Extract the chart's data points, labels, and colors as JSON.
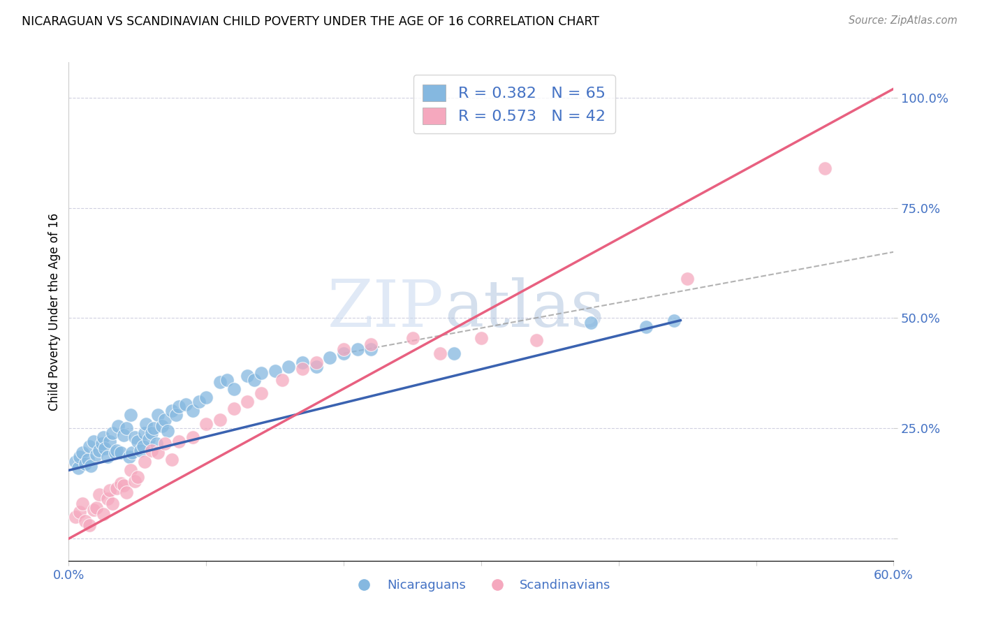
{
  "title": "NICARAGUAN VS SCANDINAVIAN CHILD POVERTY UNDER THE AGE OF 16 CORRELATION CHART",
  "source": "Source: ZipAtlas.com",
  "ylabel": "Child Poverty Under the Age of 16",
  "xmin": 0.0,
  "xmax": 0.6,
  "ymin": -0.05,
  "ymax": 1.08,
  "blue_color": "#85b8e0",
  "pink_color": "#f5a8be",
  "blue_line_color": "#3a62b0",
  "pink_line_color": "#e86080",
  "axis_color": "#4472c4",
  "R_blue": 0.382,
  "N_blue": 65,
  "R_pink": 0.573,
  "N_pink": 42,
  "watermark_zip": "ZIP",
  "watermark_atlas": "atlas",
  "background_color": "#ffffff",
  "grid_color": "#d0d0e0",
  "blue_line_x0": 0.0,
  "blue_line_y0": 0.155,
  "blue_line_x1": 0.445,
  "blue_line_y1": 0.495,
  "pink_line_x0": 0.0,
  "pink_line_y0": 0.0,
  "pink_line_x1": 0.6,
  "pink_line_y1": 1.02,
  "dash_line_x0": 0.2,
  "dash_line_y0": 0.42,
  "dash_line_x1": 0.6,
  "dash_line_y1": 0.65,
  "nicaraguan_x": [
    0.005,
    0.007,
    0.008,
    0.01,
    0.012,
    0.014,
    0.015,
    0.016,
    0.018,
    0.02,
    0.022,
    0.024,
    0.025,
    0.026,
    0.028,
    0.03,
    0.032,
    0.034,
    0.035,
    0.036,
    0.038,
    0.04,
    0.042,
    0.044,
    0.045,
    0.046,
    0.048,
    0.05,
    0.052,
    0.054,
    0.055,
    0.056,
    0.058,
    0.06,
    0.062,
    0.064,
    0.065,
    0.068,
    0.07,
    0.072,
    0.075,
    0.078,
    0.08,
    0.085,
    0.09,
    0.095,
    0.1,
    0.11,
    0.115,
    0.12,
    0.13,
    0.135,
    0.14,
    0.15,
    0.16,
    0.17,
    0.18,
    0.19,
    0.2,
    0.21,
    0.22,
    0.28,
    0.38,
    0.42,
    0.44
  ],
  "nicaraguan_y": [
    0.175,
    0.16,
    0.185,
    0.195,
    0.17,
    0.18,
    0.21,
    0.165,
    0.22,
    0.19,
    0.2,
    0.215,
    0.23,
    0.205,
    0.185,
    0.22,
    0.24,
    0.195,
    0.2,
    0.255,
    0.195,
    0.235,
    0.25,
    0.185,
    0.28,
    0.195,
    0.23,
    0.22,
    0.2,
    0.21,
    0.24,
    0.26,
    0.225,
    0.24,
    0.25,
    0.215,
    0.28,
    0.255,
    0.27,
    0.245,
    0.29,
    0.28,
    0.3,
    0.305,
    0.29,
    0.31,
    0.32,
    0.355,
    0.36,
    0.34,
    0.37,
    0.36,
    0.375,
    0.38,
    0.39,
    0.4,
    0.39,
    0.41,
    0.42,
    0.43,
    0.43,
    0.42,
    0.49,
    0.48,
    0.495
  ],
  "scandinavian_x": [
    0.005,
    0.008,
    0.01,
    0.012,
    0.015,
    0.018,
    0.02,
    0.022,
    0.025,
    0.028,
    0.03,
    0.032,
    0.035,
    0.038,
    0.04,
    0.042,
    0.045,
    0.048,
    0.05,
    0.055,
    0.06,
    0.065,
    0.07,
    0.075,
    0.08,
    0.09,
    0.1,
    0.11,
    0.12,
    0.13,
    0.14,
    0.155,
    0.17,
    0.18,
    0.2,
    0.22,
    0.25,
    0.27,
    0.3,
    0.34,
    0.45,
    0.55
  ],
  "scandinavian_y": [
    0.05,
    0.06,
    0.08,
    0.04,
    0.03,
    0.065,
    0.07,
    0.1,
    0.055,
    0.09,
    0.11,
    0.08,
    0.115,
    0.125,
    0.12,
    0.105,
    0.155,
    0.13,
    0.14,
    0.175,
    0.2,
    0.195,
    0.215,
    0.18,
    0.22,
    0.23,
    0.26,
    0.27,
    0.295,
    0.31,
    0.33,
    0.36,
    0.385,
    0.4,
    0.43,
    0.44,
    0.455,
    0.42,
    0.455,
    0.45,
    0.59,
    0.84
  ]
}
